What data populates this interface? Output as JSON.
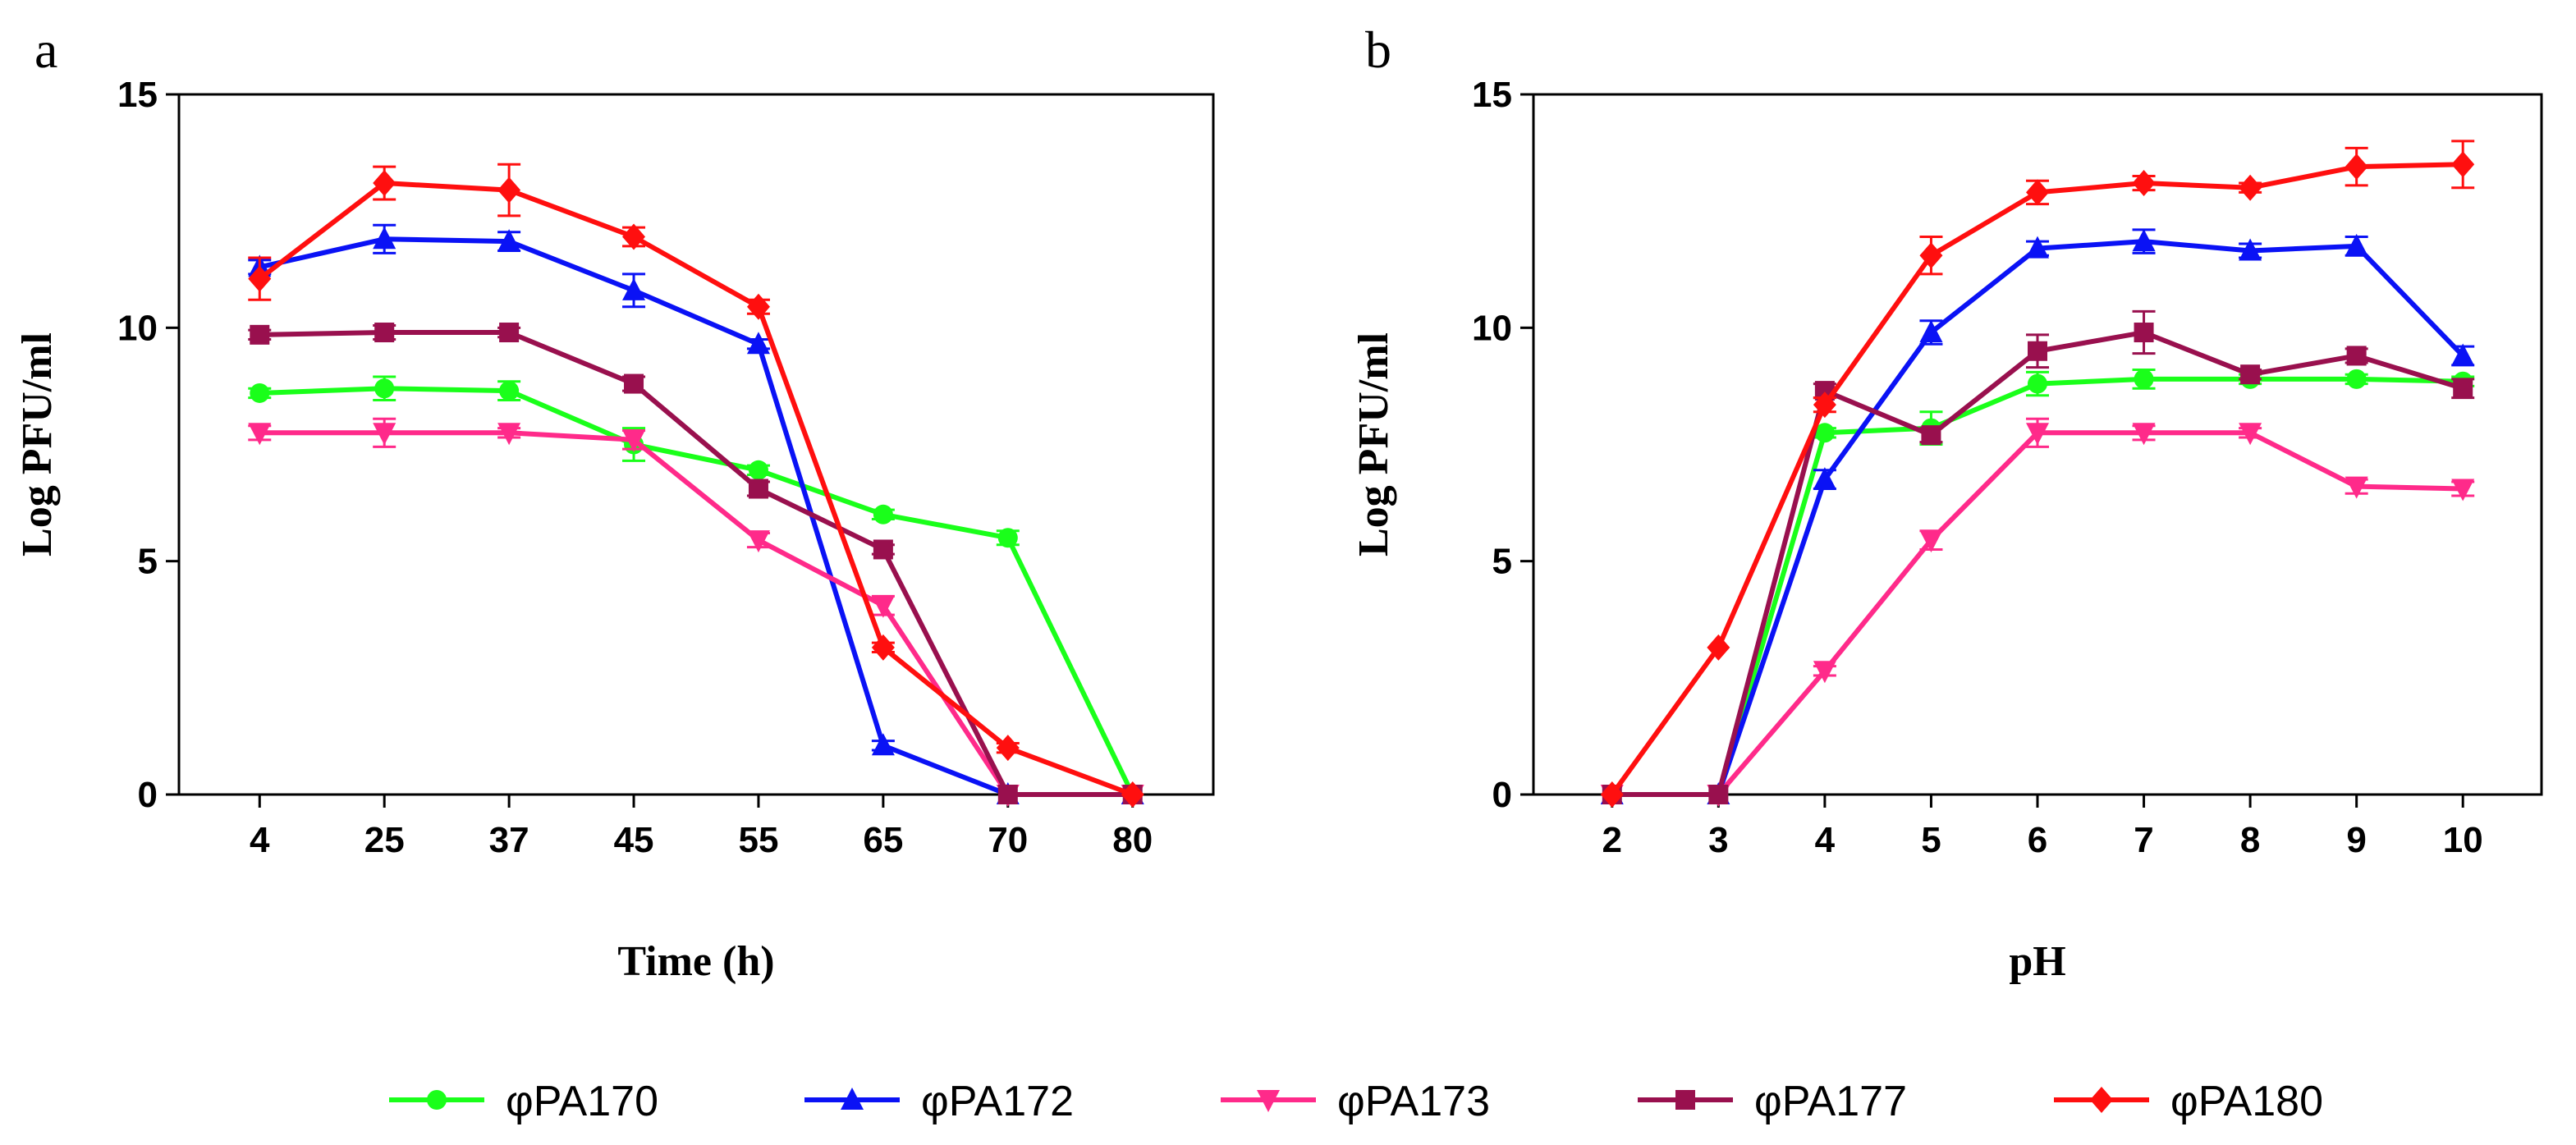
{
  "chart_data": [
    {
      "type": "line",
      "panel": "a",
      "title": "",
      "xlabel": "Time (h)",
      "ylabel": "Log PFU/ml",
      "categories": [
        "4",
        "25",
        "37",
        "45",
        "55",
        "65",
        "70",
        "80"
      ],
      "ylim": [
        0,
        15
      ],
      "yticks": [
        "0",
        "5",
        "10",
        "15"
      ],
      "grid": false,
      "series": [
        {
          "name": "φPA170",
          "color": "#1aff1a",
          "marker": "circle",
          "values": [
            8.6,
            8.7,
            8.65,
            7.5,
            6.95,
            6.0,
            5.5,
            0.0
          ],
          "errors": [
            0.1,
            0.25,
            0.2,
            0.35,
            0.1,
            0.1,
            0.15,
            0.0
          ]
        },
        {
          "name": "φPA172",
          "color": "#0a12f5",
          "marker": "triangle",
          "values": [
            11.3,
            11.9,
            11.85,
            10.8,
            9.65,
            1.05,
            0.0,
            0.0
          ],
          "errors": [
            0.15,
            0.3,
            0.2,
            0.35,
            0.1,
            0.1,
            0.0,
            0.0
          ]
        },
        {
          "name": "φPA173",
          "color": "#ff2a8a",
          "marker": "triangle-down",
          "values": [
            7.75,
            7.75,
            7.75,
            7.6,
            5.45,
            4.05,
            0.0,
            0.0
          ],
          "errors": [
            0.15,
            0.3,
            0.1,
            0.2,
            0.15,
            0.2,
            0.0,
            0.0
          ]
        },
        {
          "name": "φPA177",
          "color": "#99104e",
          "marker": "square",
          "values": [
            9.85,
            9.9,
            9.9,
            8.8,
            6.55,
            5.25,
            0.0,
            0.0
          ],
          "errors": [
            0.1,
            0.15,
            0.1,
            0.15,
            0.15,
            0.1,
            0.0,
            0.0
          ]
        },
        {
          "name": "φPA180",
          "color": "#ff0f0f",
          "marker": "diamond",
          "values": [
            11.05,
            13.1,
            12.95,
            11.95,
            10.45,
            3.15,
            1.0,
            0.0
          ],
          "errors": [
            0.45,
            0.35,
            0.55,
            0.2,
            0.15,
            0.1,
            0.1,
            0.0
          ]
        }
      ]
    },
    {
      "type": "line",
      "panel": "b",
      "title": "",
      "xlabel": "pH",
      "ylabel": "Log PFU/ml",
      "categories": [
        "2",
        "3",
        "4",
        "5",
        "6",
        "7",
        "8",
        "9",
        "10"
      ],
      "ylim": [
        0,
        15
      ],
      "yticks": [
        "0",
        "5",
        "10",
        "15"
      ],
      "grid": false,
      "series": [
        {
          "name": "φPA170",
          "color": "#1aff1a",
          "marker": "circle",
          "values": [
            0.0,
            0.0,
            7.75,
            7.85,
            8.8,
            8.9,
            8.9,
            8.9,
            8.85
          ],
          "errors": [
            0.0,
            0.0,
            0.1,
            0.35,
            0.25,
            0.2,
            0.1,
            0.1,
            0.1
          ]
        },
        {
          "name": "φPA172",
          "color": "#0a12f5",
          "marker": "triangle",
          "values": [
            0.0,
            0.0,
            6.75,
            9.9,
            11.7,
            11.85,
            11.65,
            11.75,
            9.4
          ],
          "errors": [
            0.0,
            0.0,
            0.2,
            0.25,
            0.15,
            0.25,
            0.15,
            0.2,
            0.2
          ]
        },
        {
          "name": "φPA173",
          "color": "#ff2a8a",
          "marker": "triangle-down",
          "values": [
            0.0,
            0.0,
            2.65,
            5.45,
            7.75,
            7.75,
            7.75,
            6.6,
            6.55
          ],
          "errors": [
            0.0,
            0.0,
            0.1,
            0.2,
            0.3,
            0.15,
            0.1,
            0.15,
            0.15
          ]
        },
        {
          "name": "φPA177",
          "color": "#99104e",
          "marker": "square",
          "values": [
            0.0,
            0.0,
            8.65,
            7.7,
            9.5,
            9.9,
            9.0,
            9.4,
            8.7
          ],
          "errors": [
            0.0,
            0.0,
            0.15,
            0.15,
            0.35,
            0.45,
            0.1,
            0.15,
            0.2
          ]
        },
        {
          "name": "φPA180",
          "color": "#ff0f0f",
          "marker": "diamond",
          "values": [
            0.0,
            3.15,
            8.35,
            11.55,
            12.9,
            13.1,
            13.0,
            13.45,
            13.5
          ],
          "errors": [
            0.0,
            0.0,
            0.15,
            0.4,
            0.25,
            0.15,
            0.1,
            0.4,
            0.5
          ]
        }
      ]
    }
  ],
  "legend": {
    "placement": "bottom",
    "items": [
      "φPA170",
      "φPA172",
      "φPA173",
      "φPA177",
      "φPA180"
    ]
  }
}
